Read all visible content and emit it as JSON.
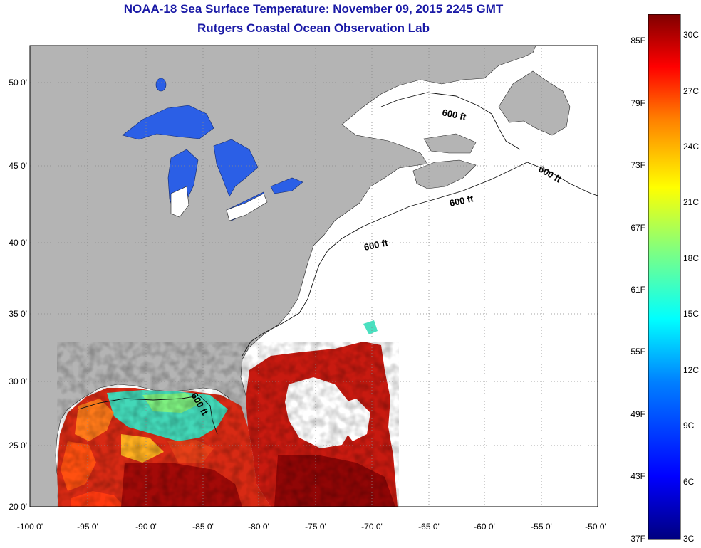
{
  "title": "NOAA-18 Sea Surface Temperature:  November 09, 2015 2245 GMT",
  "subtitle": "Rutgers Coastal Ocean Observation Lab",
  "map": {
    "lon_labels": [
      "-100 0'",
      "-95 0'",
      "-90 0'",
      "-85 0'",
      "-80 0'",
      "-75 0'",
      "-70 0'",
      "-65 0'",
      "-60 0'",
      "-55 0'",
      "-50 0'"
    ],
    "lat_labels": [
      "50 0'",
      "45 0'",
      "40 0'",
      "35 0'",
      "30 0'",
      "25 0'",
      "20 0'"
    ],
    "contour_labels": [
      "600 ft",
      "600 ft",
      "600 ft",
      "600 ft",
      "600 ft"
    ],
    "colors": {
      "land": "#b4b4b4",
      "ocean_no_data": "#ffffff",
      "lakes": "#2255e0"
    }
  },
  "colorbar": {
    "f_labels": [
      "85F",
      "79F",
      "73F",
      "67F",
      "61F",
      "55F",
      "49F",
      "43F",
      "37F"
    ],
    "c_labels": [
      "30C",
      "27C",
      "24C",
      "21C",
      "18C",
      "15C",
      "12C",
      "9C",
      "6C",
      "3C"
    ],
    "colors": [
      "#00007f",
      "#0000ff",
      "#0080ff",
      "#00ffff",
      "#80ff80",
      "#ffff00",
      "#ff8000",
      "#ff0000",
      "#7f0000"
    ]
  }
}
